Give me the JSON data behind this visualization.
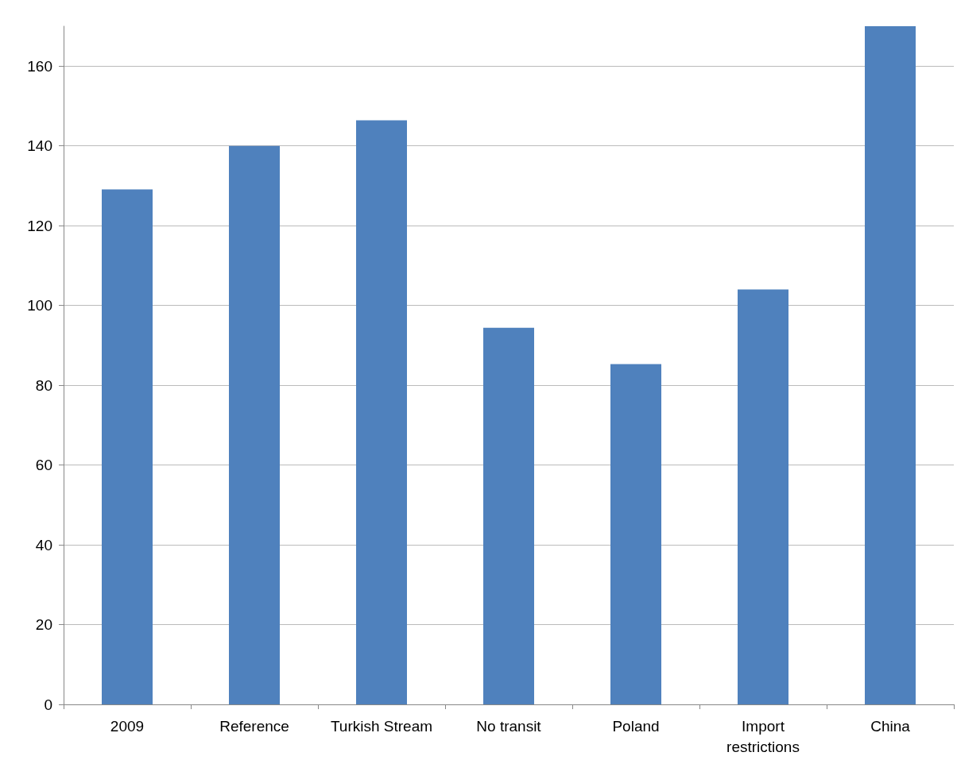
{
  "chart_data": {
    "type": "bar",
    "categories": [
      "2009",
      "Reference",
      "Turkish Stream",
      "No transit",
      "Poland",
      "Import\nrestrictions",
      "China"
    ],
    "values": [
      129.1,
      140,
      146.4,
      94.4,
      85.3,
      104,
      170
    ],
    "color": "#4f81bd",
    "ylim": [
      0,
      170
    ],
    "yticks": [
      0,
      20,
      40,
      60,
      80,
      100,
      120,
      140,
      160
    ],
    "grid": "y"
  }
}
